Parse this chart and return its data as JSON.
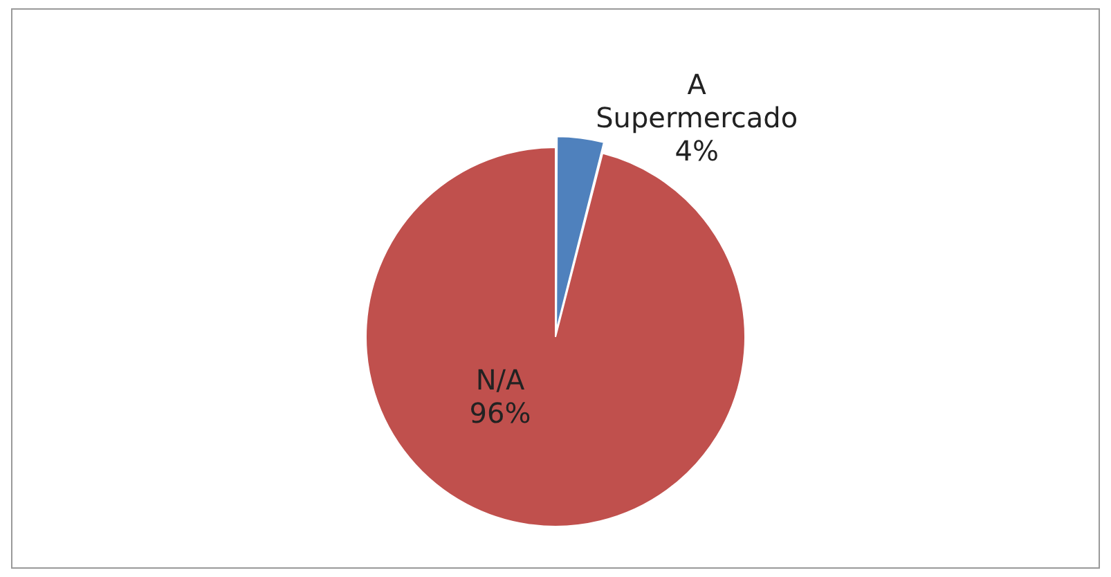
{
  "chart_data": {
    "type": "pie",
    "categories": [
      "A Supermercado",
      "N/A"
    ],
    "values": [
      4,
      96
    ],
    "value_labels": [
      "4%",
      "96%"
    ],
    "colors": [
      "#4f81bd",
      "#c0504d"
    ],
    "legend": false
  }
}
